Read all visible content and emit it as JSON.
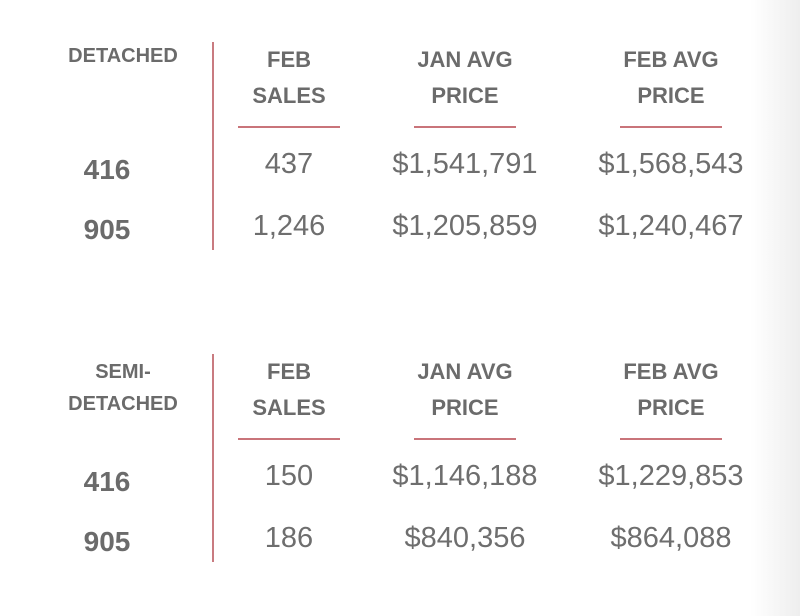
{
  "columns": {
    "sales": [
      "FEB",
      "SALES"
    ],
    "jan_price": [
      "JAN AVG",
      "PRICE"
    ],
    "feb_price": [
      "FEB AVG",
      "PRICE"
    ]
  },
  "sections": [
    {
      "type_lines": [
        "DETACHED"
      ],
      "rows": [
        {
          "area": "416",
          "feb_sales": "437",
          "jan_avg_price": "$1,541,791",
          "feb_avg_price": "$1,568,543"
        },
        {
          "area": "905",
          "feb_sales": "1,246",
          "jan_avg_price": "$1,205,859",
          "feb_avg_price": "$1,240,467"
        }
      ]
    },
    {
      "type_lines": [
        "SEMI-",
        "DETACHED"
      ],
      "rows": [
        {
          "area": "416",
          "feb_sales": "150",
          "jan_avg_price": "$1,146,188",
          "feb_avg_price": "$1,229,853"
        },
        {
          "area": "905",
          "feb_sales": "186",
          "jan_avg_price": "$840,356",
          "feb_avg_price": "$864,088"
        }
      ]
    }
  ],
  "colors": {
    "accent_line": "#c9747a",
    "text": "#6b6b6b",
    "background": "#ffffff"
  }
}
